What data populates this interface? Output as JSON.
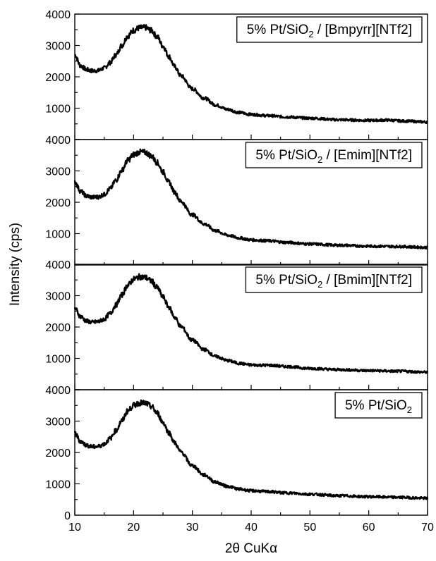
{
  "chart_data": {
    "type": "line",
    "layout": "stacked-panels",
    "xlabel": "2θ CuKα",
    "ylabel": "Intensity (cps)",
    "xlim": [
      10,
      70
    ],
    "xticks": [
      "10",
      "20",
      "30",
      "40",
      "50",
      "60",
      "70"
    ],
    "ylim": [
      0,
      4000
    ],
    "yticks_bottom": [
      "0",
      "1000",
      "2000",
      "3000",
      "4000"
    ],
    "yticks_upper": [
      "1000",
      "2000",
      "3000",
      "4000"
    ],
    "grid": false,
    "panels": [
      {
        "legend": {
          "pre": "5% Pt/SiO",
          "sub": "2",
          "post": " / [Bmpyrr][NTf2]"
        },
        "series": {
          "x": [
            10,
            11,
            12,
            13,
            14,
            15,
            16,
            17,
            18,
            19,
            20,
            21,
            22,
            23,
            24,
            25,
            26,
            27,
            28,
            30,
            32,
            34,
            36,
            38,
            40,
            43,
            46,
            50,
            55,
            60,
            63,
            66,
            70
          ],
          "y": [
            2700,
            2350,
            2230,
            2190,
            2200,
            2280,
            2450,
            2700,
            3000,
            3300,
            3480,
            3560,
            3570,
            3480,
            3280,
            2980,
            2650,
            2330,
            2040,
            1620,
            1320,
            1100,
            960,
            860,
            800,
            760,
            720,
            680,
            630,
            610,
            620,
            590,
            560
          ]
        }
      },
      {
        "legend": {
          "pre": "5% Pt/SiO",
          "sub": "2",
          "post": " / [Emim][NTf2]"
        },
        "series": {
          "x": [
            10,
            11,
            12,
            13,
            14,
            15,
            16,
            17,
            18,
            19,
            20,
            21,
            22,
            23,
            24,
            25,
            26,
            27,
            28,
            30,
            32,
            34,
            36,
            38,
            40,
            43,
            46,
            50,
            55,
            60,
            65,
            70
          ],
          "y": [
            2650,
            2350,
            2200,
            2160,
            2170,
            2250,
            2430,
            2700,
            3020,
            3330,
            3520,
            3600,
            3590,
            3480,
            3270,
            2970,
            2640,
            2320,
            2030,
            1600,
            1310,
            1090,
            950,
            860,
            800,
            770,
            720,
            670,
            630,
            600,
            590,
            560
          ]
        }
      },
      {
        "legend": {
          "pre": "5% Pt/SiO",
          "sub": "2",
          "post": " / [Bmim][NTf2]"
        },
        "series": {
          "x": [
            10,
            11,
            12,
            13,
            14,
            15,
            16,
            17,
            18,
            19,
            20,
            21,
            22,
            23,
            24,
            25,
            26,
            27,
            28,
            30,
            32,
            34,
            36,
            38,
            40,
            43,
            46,
            50,
            55,
            60,
            65,
            70
          ],
          "y": [
            2600,
            2330,
            2190,
            2150,
            2170,
            2250,
            2430,
            2700,
            3020,
            3330,
            3520,
            3600,
            3580,
            3470,
            3260,
            2960,
            2630,
            2310,
            2020,
            1580,
            1280,
            1060,
            930,
            840,
            790,
            780,
            740,
            680,
            640,
            610,
            590,
            560
          ]
        }
      },
      {
        "legend": {
          "pre": "5% Pt/SiO",
          "sub": "2",
          "post": ""
        },
        "series": {
          "x": [
            10,
            11,
            12,
            13,
            14,
            15,
            16,
            17,
            18,
            19,
            20,
            21,
            22,
            23,
            24,
            25,
            26,
            27,
            28,
            30,
            32,
            34,
            36,
            38,
            40,
            43,
            46,
            50,
            55,
            60,
            65,
            70
          ],
          "y": [
            2620,
            2350,
            2230,
            2180,
            2190,
            2270,
            2440,
            2700,
            3010,
            3320,
            3500,
            3580,
            3570,
            3470,
            3260,
            2960,
            2630,
            2310,
            2020,
            1580,
            1280,
            1050,
            920,
            830,
            780,
            750,
            710,
            670,
            620,
            590,
            570,
            540
          ]
        }
      }
    ]
  }
}
